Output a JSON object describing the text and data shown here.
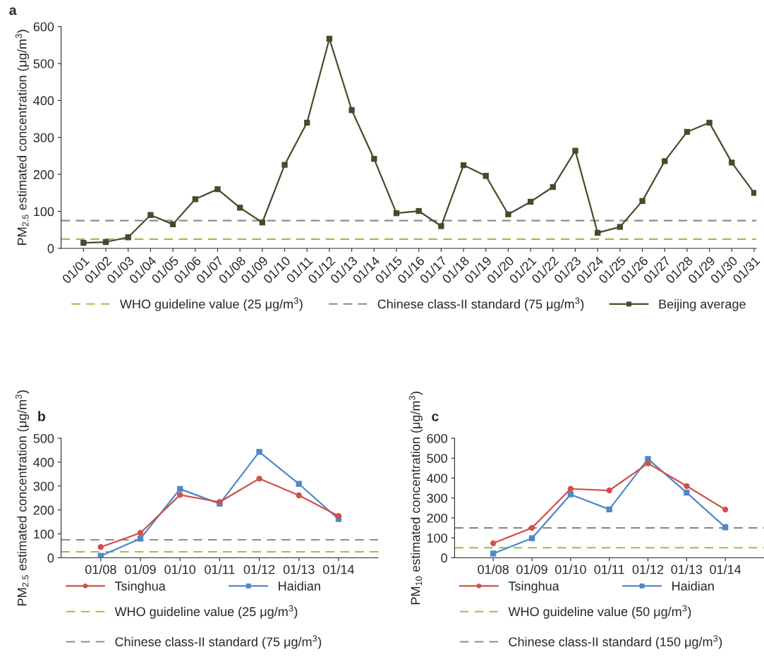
{
  "chart_data": [
    {
      "type": "line",
      "title": "a",
      "ylabel": "PM$_{2.5}$ estimated concentration (μg/m$^{3}$)",
      "categories": [
        "01/01",
        "01/02",
        "01/03",
        "01/04",
        "01/05",
        "01/06",
        "01/07",
        "01/08",
        "01/09",
        "01/10",
        "01/11",
        "01/12",
        "01/13",
        "01/14",
        "01/15",
        "01/16",
        "01/17",
        "01/18",
        "01/19",
        "01/20",
        "01/21",
        "01/22",
        "01/23",
        "01/24",
        "01/25",
        "01/26",
        "01/27",
        "01/28",
        "01/29",
        "01/30",
        "01/31"
      ],
      "series": [
        {
          "name": "Beijing average",
          "color": "#4a4a2a",
          "marker": "square",
          "values": [
            15,
            17,
            30,
            90,
            65,
            133,
            160,
            110,
            70,
            226,
            340,
            567,
            374,
            242,
            95,
            101,
            60,
            225,
            196,
            92,
            126,
            166,
            264,
            42,
            58,
            128,
            236,
            315,
            340,
            232,
            150
          ]
        }
      ],
      "ylim": [
        0,
        600
      ],
      "yticks": [
        0,
        100,
        200,
        300,
        400,
        500,
        600
      ],
      "ref_lines": [
        {
          "axis": "y",
          "value": 25,
          "label": "WHO guideline value (25 μg/m$^{3}$)",
          "color": "#9ac04a",
          "line_style": "dashed"
        },
        {
          "axis": "y",
          "value": 75,
          "label": "Chinese class-II standard (75 μg/m$^{3}$)",
          "color": "#8c8c8c",
          "line_style": "dashed"
        }
      ],
      "legend": "bottom",
      "grid": false
    },
    {
      "type": "line",
      "title": "b",
      "ylabel": "PM$_{2.5}$ estimated concentration (μg/m$^{3}$)",
      "categories": [
        "01/08",
        "01/09",
        "01/10",
        "01/11",
        "01/12",
        "01/13",
        "01/14"
      ],
      "series": [
        {
          "name": "Tsinghua",
          "color": "#d0504a",
          "marker": "circle",
          "values": [
            45,
            104,
            263,
            233,
            331,
            261,
            175
          ]
        },
        {
          "name": "Haidian",
          "color": "#4f88c6",
          "marker": "square",
          "values": [
            8,
            80,
            288,
            226,
            443,
            309,
            162
          ]
        }
      ],
      "ylim": [
        0,
        500
      ],
      "yticks": [
        0,
        100,
        200,
        300,
        400,
        500
      ],
      "ref_lines": [
        {
          "axis": "y",
          "value": 25,
          "label": "WHO guideline value (25 μg/m$^{3}$)",
          "color": "#9ac04a",
          "line_style": "dashed"
        },
        {
          "axis": "y",
          "value": 75,
          "label": "Chinese class-II standard (75 μg/m$^{3}$)",
          "color": "#8c8c8c",
          "line_style": "dashed"
        }
      ],
      "legend": "bottom",
      "grid": false
    },
    {
      "type": "line",
      "title": "c",
      "ylabel": "PM$_{10}$ estimated concentration (μg/m$^{3}$)",
      "categories": [
        "01/08",
        "01/09",
        "01/10",
        "01/11",
        "01/12",
        "01/13",
        "01/14"
      ],
      "series": [
        {
          "name": "Tsinghua",
          "color": "#d0504a",
          "marker": "circle",
          "values": [
            73,
            150,
            346,
            338,
            474,
            360,
            242
          ]
        },
        {
          "name": "Haidian",
          "color": "#4f88c6",
          "marker": "square",
          "values": [
            21,
            98,
            318,
            243,
            496,
            327,
            153
          ]
        }
      ],
      "ylim": [
        0,
        600
      ],
      "yticks": [
        0,
        100,
        200,
        300,
        400,
        500,
        600
      ],
      "ref_lines": [
        {
          "axis": "y",
          "value": 50,
          "label": "WHO guideline value (50 μg/m$^{3}$)",
          "color": "#9ac04a",
          "line_style": "dashed"
        },
        {
          "axis": "y",
          "value": 150,
          "label": "Chinese class-II standard (150 μg/m$^{3}$)",
          "color": "#8c8c8c",
          "line_style": "dashed"
        }
      ],
      "legend": "bottom",
      "grid": false
    }
  ]
}
